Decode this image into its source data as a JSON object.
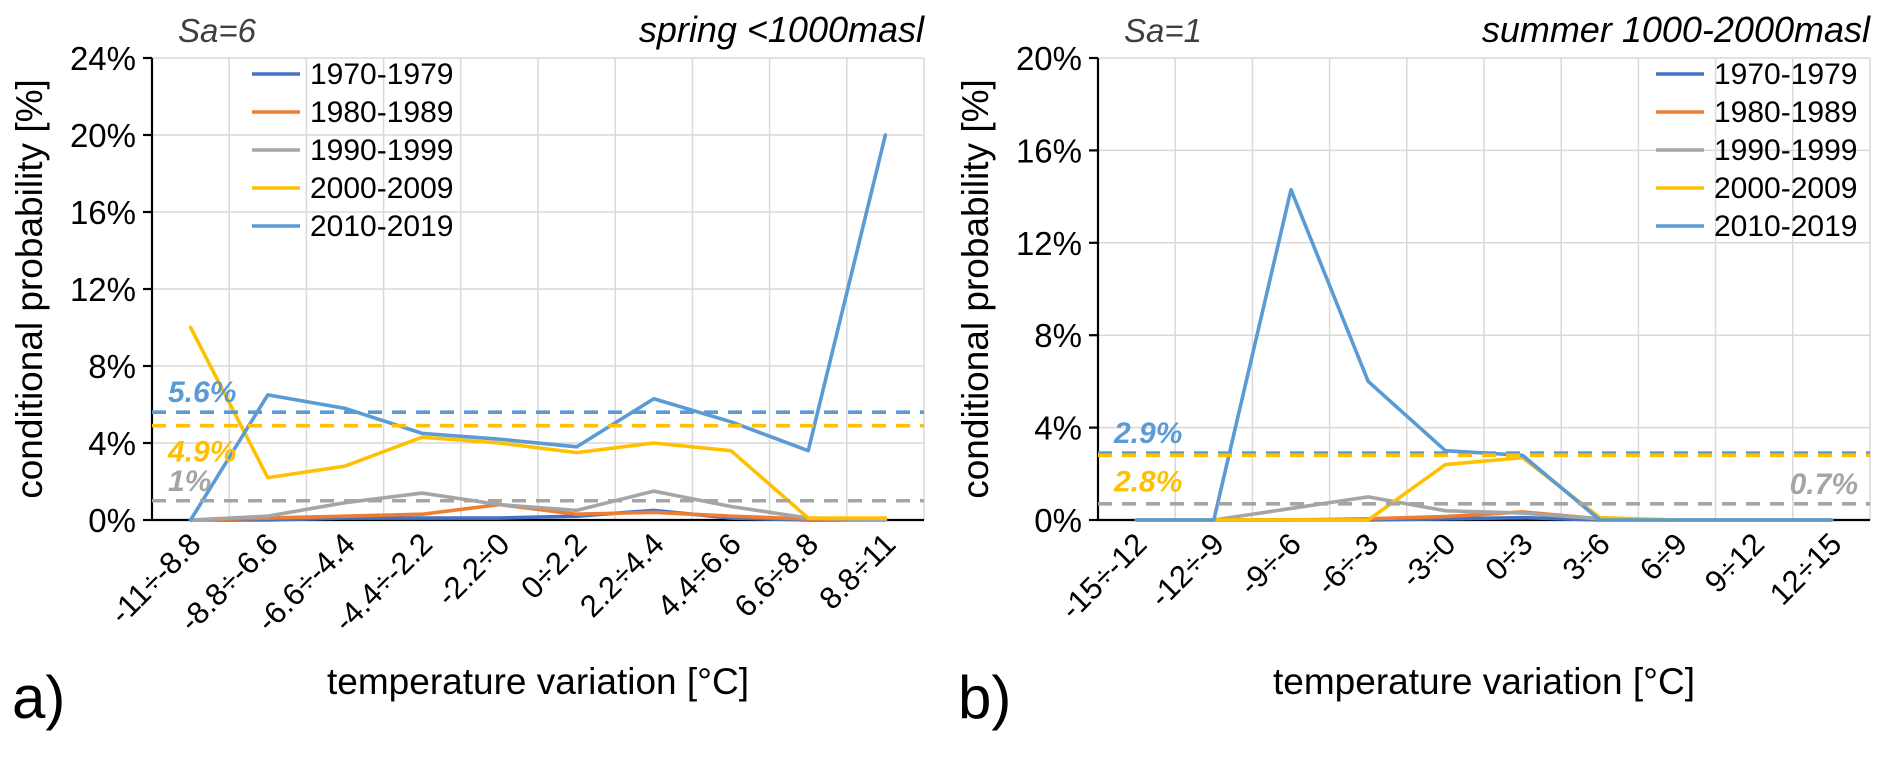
{
  "figure": {
    "background": "#FFFFFF",
    "grid_color": "#D9D9D9",
    "axis_color": "#000000"
  },
  "chart_data": [
    {
      "type": "line",
      "panel_label": "a)",
      "annotation": "Sa=6",
      "title": "spring <1000masl",
      "xlabel": "temperature variation [°C]",
      "ylabel": "conditional probability [%]",
      "ylim": [
        0,
        24
      ],
      "ytick_step": 4,
      "ytick_suffix": "%",
      "grid": true,
      "legend_position": "top-left",
      "categories": [
        "-11÷-8.8",
        "-8.8÷-6.6",
        "-6.6÷-4.4",
        "-4.4÷-2.2",
        "-2.2÷0",
        "0÷2.2",
        "2.2÷4.4",
        "4.4÷6.6",
        "6.6÷8.8",
        "8.8÷11"
      ],
      "series": [
        {
          "name": "1970-1979",
          "color": "#4472C4",
          "values": [
            0,
            0,
            0.1,
            0.1,
            0.1,
            0.2,
            0.5,
            0.1,
            0,
            0
          ]
        },
        {
          "name": "1980-1989",
          "color": "#ED7D31",
          "values": [
            0,
            0.1,
            0.2,
            0.3,
            0.8,
            0.3,
            0.4,
            0.2,
            0.05,
            0
          ]
        },
        {
          "name": "1990-1999",
          "color": "#A5A5A5",
          "values": [
            0,
            0.2,
            0.9,
            1.4,
            0.8,
            0.5,
            1.5,
            0.7,
            0.1,
            0
          ]
        },
        {
          "name": "2000-2009",
          "color": "#FFC000",
          "values": [
            10,
            2.2,
            2.8,
            4.3,
            4.0,
            3.5,
            4.0,
            3.6,
            0.1,
            0.1
          ]
        },
        {
          "name": "2010-2019",
          "color": "#5B9BD5",
          "values": [
            0,
            6.5,
            5.8,
            4.5,
            4.2,
            3.8,
            6.3,
            5.1,
            3.6,
            20
          ]
        }
      ],
      "reference_lines": [
        {
          "value": 5.6,
          "label": "5.6%",
          "color": "#5B9BD5",
          "label_side": "left",
          "label_above": true
        },
        {
          "value": 4.9,
          "label": "4.9%",
          "color": "#FFC000",
          "label_side": "left",
          "label_above": false
        },
        {
          "value": 1,
          "label": "1%",
          "color": "#A5A5A5",
          "label_side": "left",
          "label_above": true
        }
      ]
    },
    {
      "type": "line",
      "panel_label": "b)",
      "annotation": "Sa=1",
      "title": "summer 1000-2000masl",
      "xlabel": "temperature variation [°C]",
      "ylabel": "conditional probability [%]",
      "ylim": [
        0,
        20
      ],
      "ytick_step": 4,
      "ytick_suffix": "%",
      "grid": true,
      "legend_position": "top-right",
      "categories": [
        "-15÷-12",
        "-12÷-9",
        "-9÷-6",
        "-6÷-3",
        "-3÷0",
        "0÷3",
        "3÷6",
        "6÷9",
        "9÷12",
        "12÷15"
      ],
      "series": [
        {
          "name": "1970-1979",
          "color": "#4472C4",
          "values": [
            0,
            0,
            0,
            0,
            0.05,
            0.1,
            0,
            0,
            0,
            0
          ]
        },
        {
          "name": "1980-1989",
          "color": "#ED7D31",
          "values": [
            0,
            0,
            0,
            0.05,
            0.15,
            0.35,
            0.05,
            0,
            0,
            0
          ]
        },
        {
          "name": "1990-1999",
          "color": "#A5A5A5",
          "values": [
            0,
            0,
            0.5,
            1.0,
            0.4,
            0.3,
            0.05,
            0,
            0,
            0
          ]
        },
        {
          "name": "2000-2009",
          "color": "#FFC000",
          "values": [
            0,
            0,
            0,
            0,
            2.4,
            2.7,
            0.1,
            0,
            0,
            0
          ]
        },
        {
          "name": "2010-2019",
          "color": "#5B9BD5",
          "values": [
            0,
            0,
            14.3,
            6.0,
            3.0,
            2.8,
            0,
            0,
            0,
            0
          ]
        }
      ],
      "reference_lines": [
        {
          "value": 2.9,
          "label": "2.9%",
          "color": "#5B9BD5",
          "label_side": "left",
          "label_above": true
        },
        {
          "value": 2.8,
          "label": "2.8%",
          "color": "#FFC000",
          "label_side": "left",
          "label_above": false
        },
        {
          "value": 0.7,
          "label": "0.7%",
          "color": "#A5A5A5",
          "label_side": "right",
          "label_above": true
        }
      ]
    }
  ]
}
